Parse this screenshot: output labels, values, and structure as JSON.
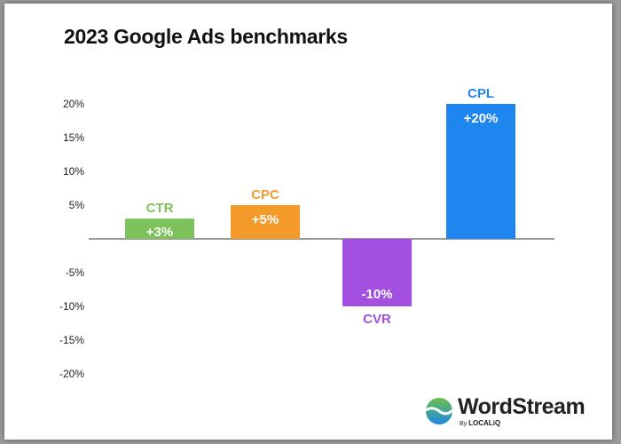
{
  "title": "2023 Google Ads benchmarks",
  "chart_data": {
    "type": "bar",
    "title": "2023 Google Ads benchmarks",
    "categories": [
      "CTR",
      "CPC",
      "CVR",
      "CPL"
    ],
    "values": [
      3,
      5,
      -10,
      20
    ],
    "value_labels": [
      "+3%",
      "+5%",
      "-10%",
      "+20%"
    ],
    "colors": [
      "#7cc15a",
      "#f39a2b",
      "#a34fe0",
      "#1f86f0"
    ],
    "ylim": [
      -20,
      20
    ],
    "yticks": [
      20,
      15,
      10,
      5,
      -5,
      -10,
      -15,
      -20
    ],
    "ytick_labels": [
      "20%",
      "15%",
      "10%",
      "5%",
      "-5%",
      "-10%",
      "-15%",
      "-20%"
    ],
    "xlabel": "",
    "ylabel": "",
    "grid": false
  },
  "logo": {
    "name": "WordStream",
    "by": "By",
    "sub": "LOCALiQ"
  }
}
